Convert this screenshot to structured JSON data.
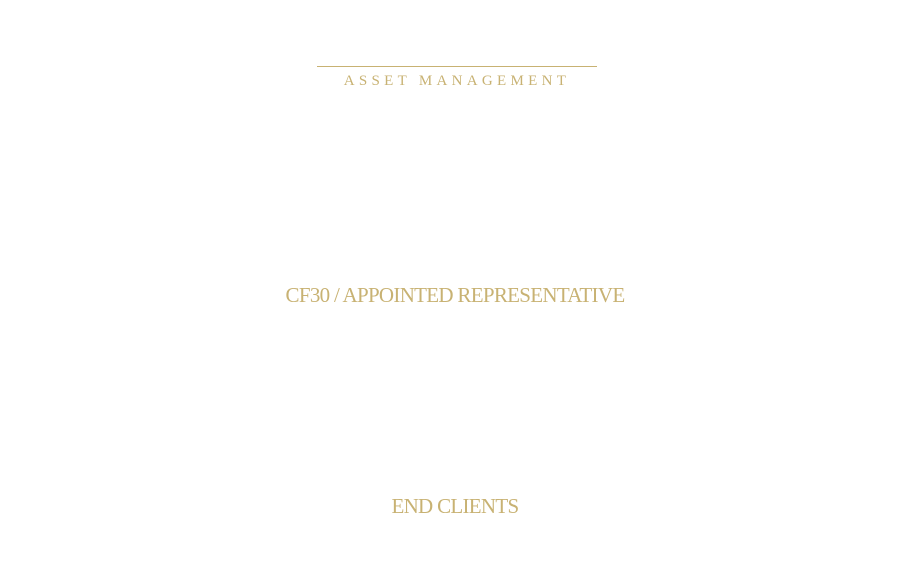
{
  "header": {
    "label": "ASSET MANAGEMENT"
  },
  "diagram": {
    "nodes": [
      {
        "label": "CF30 / APPOINTED REPRESENTATIVE"
      },
      {
        "label": "END CLIENTS"
      }
    ]
  },
  "colors": {
    "accent": "#c8b273",
    "background": "#ffffff"
  }
}
